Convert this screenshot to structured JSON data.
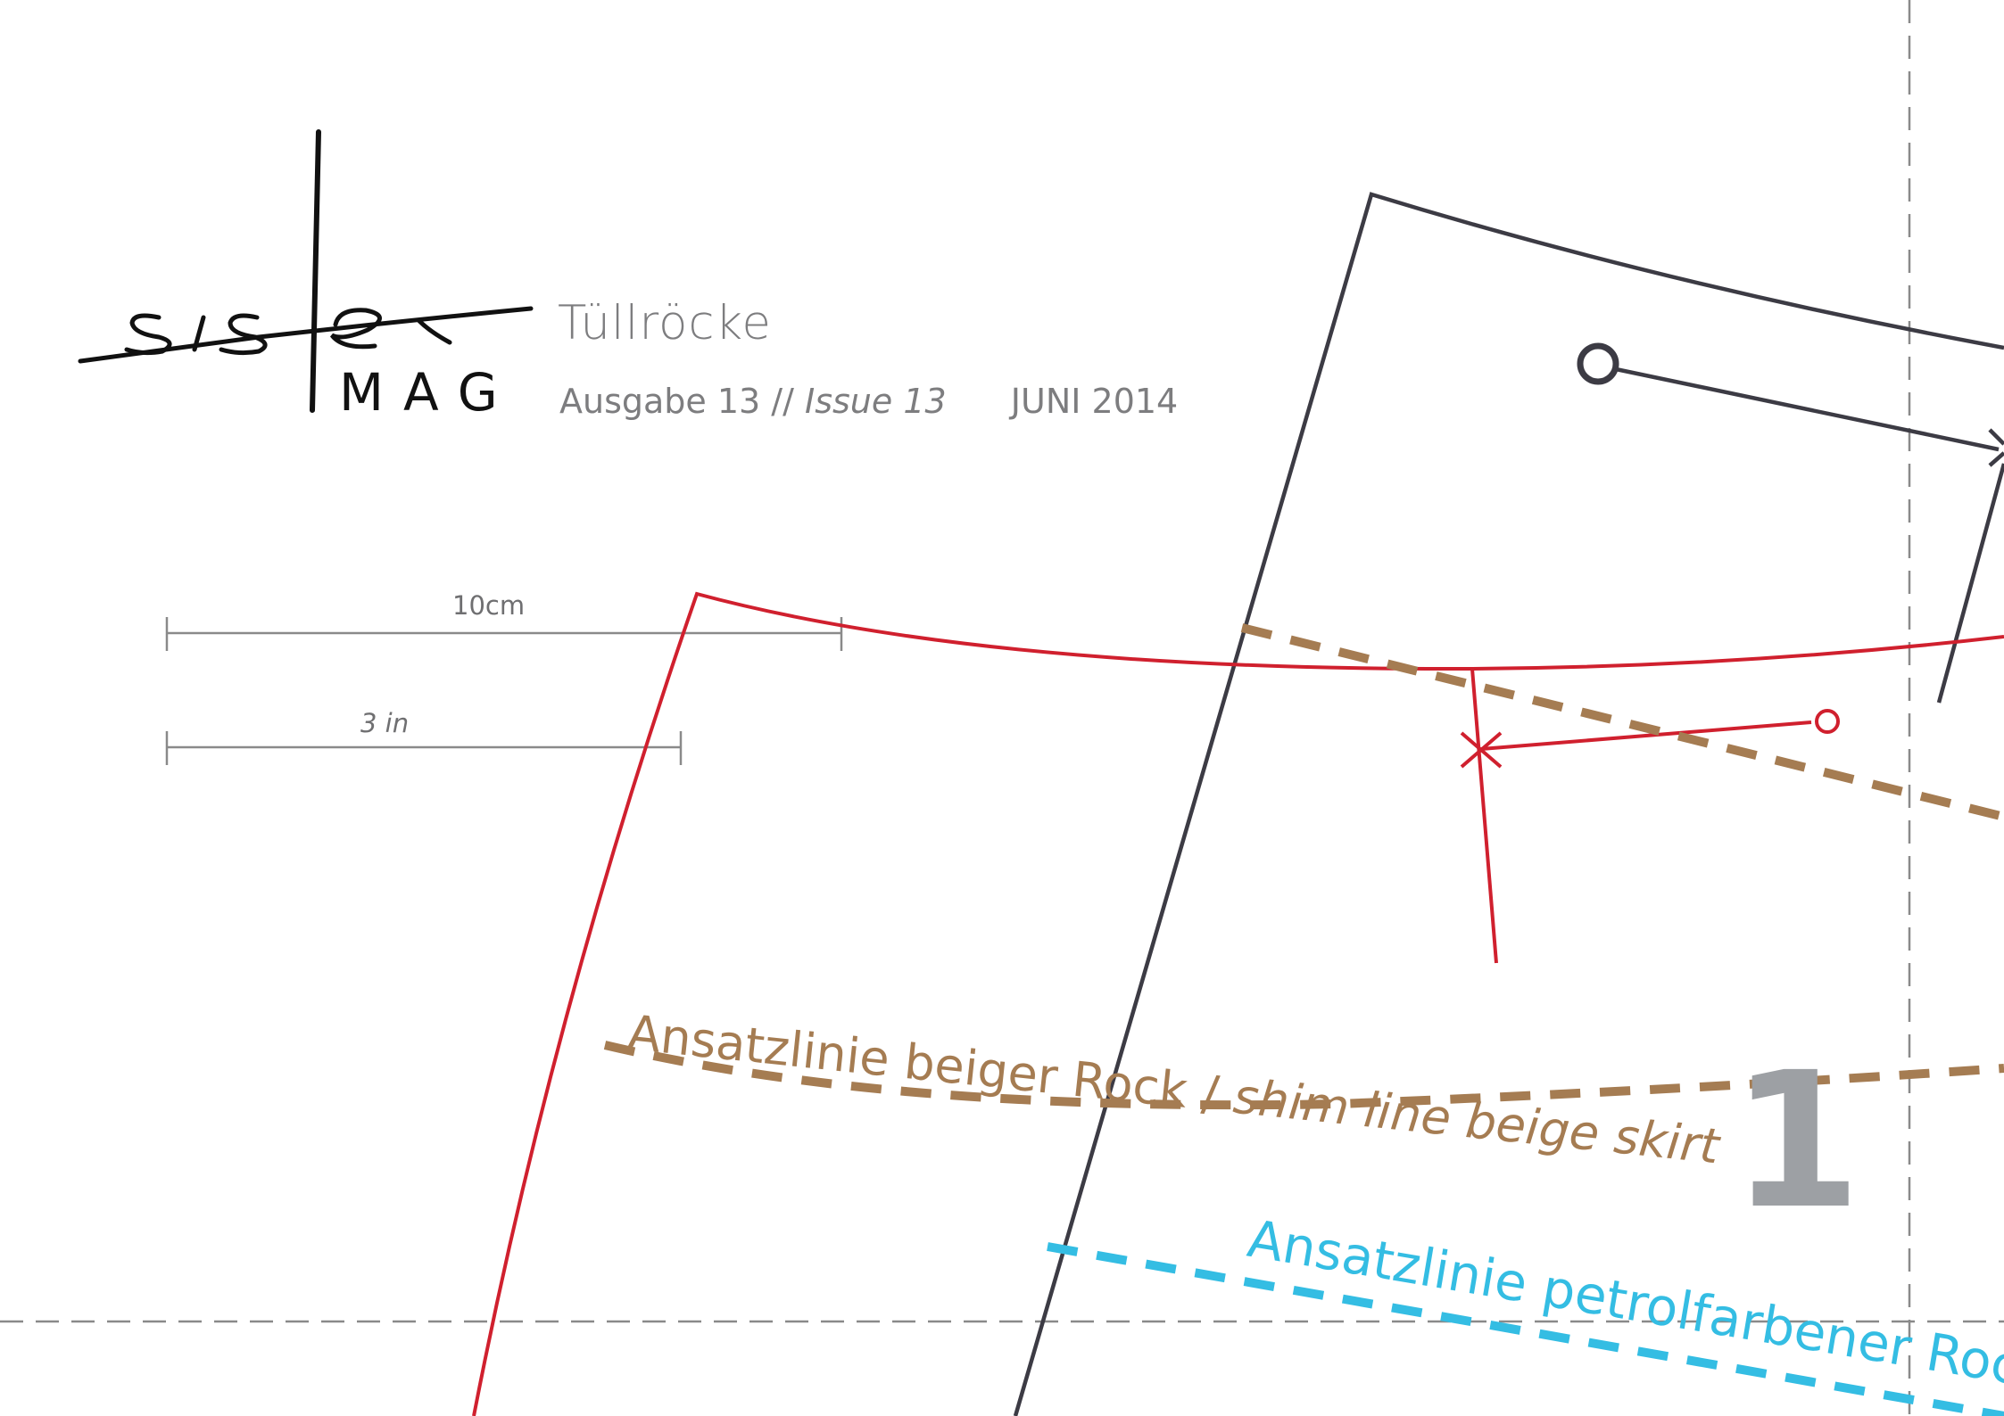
{
  "brand": {
    "logo_word": "sister",
    "logo_sub": "MAG"
  },
  "header": {
    "title": "Tüllröcke",
    "issue_de": "Ausgabe 13 //",
    "issue_en": "Issue 13",
    "date": "JUNI 2014"
  },
  "scales": {
    "metric": "10cm",
    "imperial": "3 in"
  },
  "labels": {
    "beige_de": "Ansatzlinie beiger Rock / ",
    "beige_en": "shim line beige skirt",
    "petrol": "Ansatzlinie petrolfarbener Roc",
    "piece_number": "1"
  },
  "colors": {
    "red": "#d0202e",
    "dark": "#3c3b44",
    "beige": "#a57c52",
    "petrol": "#34bde3",
    "grey": "#888888",
    "number": "#9da0a4"
  }
}
